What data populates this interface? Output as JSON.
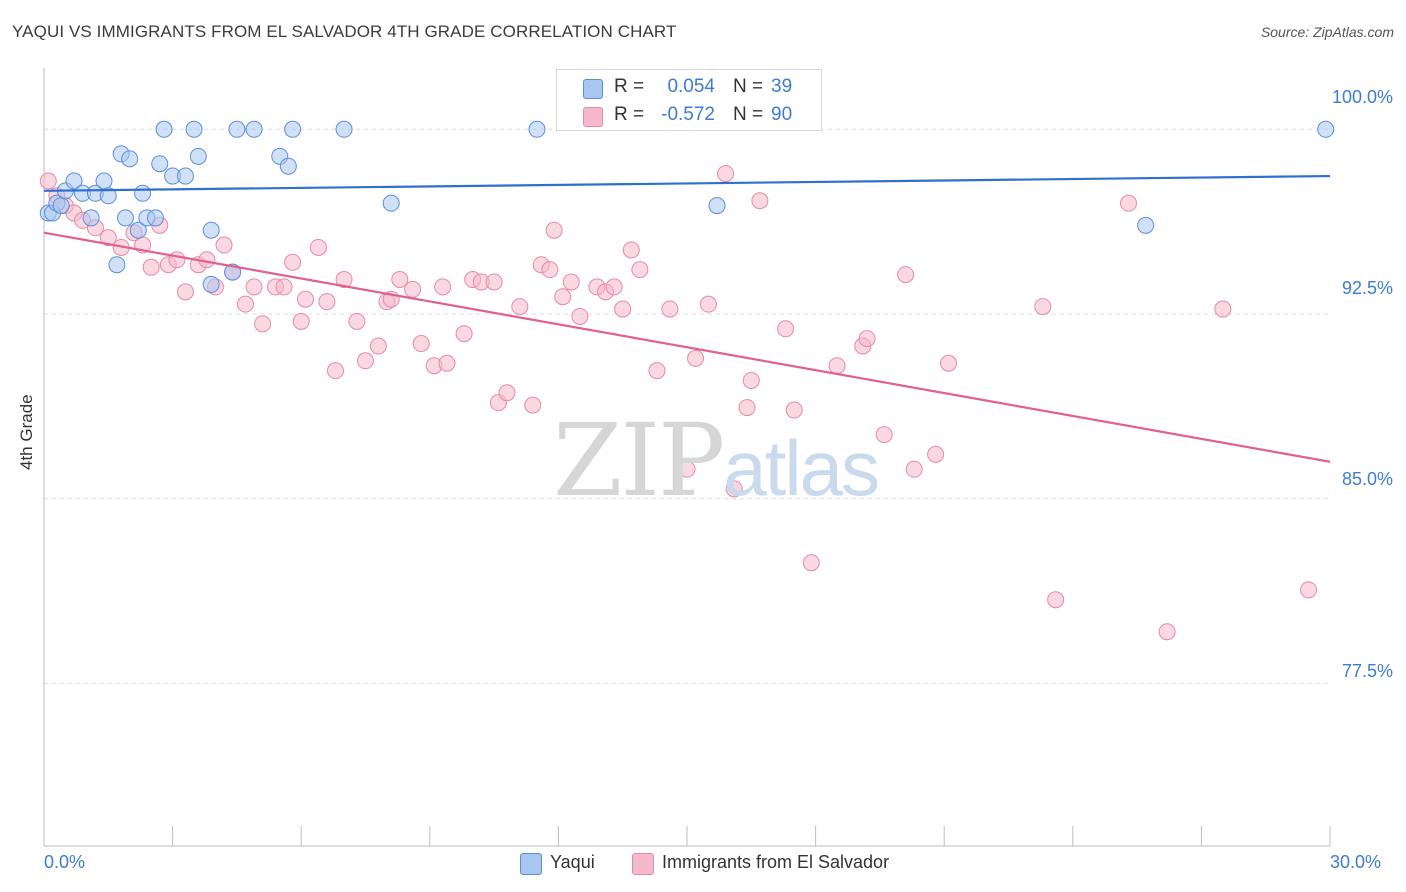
{
  "header": {
    "title": "YAQUI VS IMMIGRANTS FROM EL SALVADOR 4TH GRADE CORRELATION CHART",
    "source": "Source: ZipAtlas.com"
  },
  "watermark": {
    "zip": "ZIP",
    "atlas": "atlas"
  },
  "legend": {
    "r_label": "R =",
    "n_label": "N =",
    "rows": [
      {
        "r": "0.054",
        "n": "39",
        "color": "#a9c6f0"
      },
      {
        "r": "-0.572",
        "n": "90",
        "color": "#f6b8cb"
      }
    ]
  },
  "bottom_legend": [
    {
      "label": "Yaqui",
      "color": "#a9c6f0"
    },
    {
      "label": "Immigrants from El Salvador",
      "color": "#f6b8cb"
    }
  ],
  "axes": {
    "ylabel": "4th Grade",
    "yticks": [
      "100.0%",
      "92.5%",
      "85.0%",
      "77.5%"
    ],
    "xticks": [
      "0.0%",
      "30.0%"
    ]
  },
  "colors": {
    "blue_fill": "#a9c6f0",
    "blue_stroke": "#5b8fd8",
    "blue_line": "#2f6fd0",
    "pink_fill": "#f6b8cb",
    "pink_stroke": "#e58aa6",
    "pink_line": "#e0608e",
    "tick_text": "#3d7bd4",
    "grid": "#dcdcdc"
  },
  "chart_data": {
    "type": "scatter",
    "title": "YAQUI VS IMMIGRANTS FROM EL SALVADOR 4TH GRADE CORRELATION CHART",
    "xlabel": "",
    "ylabel": "4th Grade",
    "xlim": [
      0,
      30
    ],
    "ylim": [
      70.9,
      102.0
    ],
    "ygrid": [
      100.0,
      92.5,
      85.0,
      77.5
    ],
    "grid": true,
    "legend_position": "top-center",
    "series": [
      {
        "name": "Yaqui",
        "r": 0.054,
        "n": 39,
        "trend": [
          [
            0,
            97.5
          ],
          [
            30,
            98.1
          ]
        ],
        "points": [
          [
            0.1,
            96.6
          ],
          [
            0.2,
            96.6
          ],
          [
            0.3,
            97.0
          ],
          [
            0.4,
            96.9
          ],
          [
            0.5,
            97.5
          ],
          [
            0.7,
            97.9
          ],
          [
            0.9,
            97.4
          ],
          [
            1.1,
            96.4
          ],
          [
            1.2,
            97.4
          ],
          [
            1.4,
            97.9
          ],
          [
            1.5,
            97.3
          ],
          [
            1.7,
            94.5
          ],
          [
            1.8,
            99.0
          ],
          [
            2.0,
            98.8
          ],
          [
            1.9,
            96.4
          ],
          [
            2.2,
            95.9
          ],
          [
            2.3,
            97.4
          ],
          [
            2.4,
            96.4
          ],
          [
            2.6,
            96.4
          ],
          [
            2.7,
            98.6
          ],
          [
            2.8,
            100.0
          ],
          [
            3.0,
            98.1
          ],
          [
            3.3,
            98.1
          ],
          [
            3.5,
            100.0
          ],
          [
            3.6,
            98.9
          ],
          [
            3.9,
            95.9
          ],
          [
            3.9,
            93.7
          ],
          [
            4.4,
            94.2
          ],
          [
            4.5,
            100.0
          ],
          [
            4.9,
            100.0
          ],
          [
            5.5,
            98.9
          ],
          [
            5.7,
            98.5
          ],
          [
            5.8,
            100.0
          ],
          [
            7.0,
            100.0
          ],
          [
            8.1,
            97.0
          ],
          [
            11.5,
            100.0
          ],
          [
            15.7,
            96.9
          ],
          [
            25.7,
            96.1
          ],
          [
            29.9,
            100.0
          ]
        ]
      },
      {
        "name": "Immigrants from El Salvador",
        "r": -0.572,
        "n": 90,
        "trend": [
          [
            0,
            95.8
          ],
          [
            30,
            86.5
          ]
        ],
        "points": [
          [
            0.1,
            97.9
          ],
          [
            0.3,
            97.3
          ],
          [
            0.5,
            96.9
          ],
          [
            0.7,
            96.6
          ],
          [
            0.9,
            96.3
          ],
          [
            1.2,
            96.0
          ],
          [
            1.5,
            95.6
          ],
          [
            1.8,
            95.2
          ],
          [
            2.1,
            95.8
          ],
          [
            2.3,
            95.3
          ],
          [
            2.5,
            94.4
          ],
          [
            2.7,
            96.1
          ],
          [
            2.9,
            94.5
          ],
          [
            3.1,
            94.7
          ],
          [
            3.3,
            93.4
          ],
          [
            3.6,
            94.5
          ],
          [
            3.8,
            94.7
          ],
          [
            4.0,
            93.6
          ],
          [
            4.2,
            95.3
          ],
          [
            4.4,
            94.2
          ],
          [
            4.7,
            92.9
          ],
          [
            4.9,
            93.6
          ],
          [
            5.1,
            92.1
          ],
          [
            5.4,
            93.6
          ],
          [
            5.6,
            93.6
          ],
          [
            5.8,
            94.6
          ],
          [
            6.0,
            92.2
          ],
          [
            6.1,
            93.1
          ],
          [
            6.4,
            95.2
          ],
          [
            6.6,
            93.0
          ],
          [
            6.8,
            90.2
          ],
          [
            7.0,
            93.9
          ],
          [
            7.3,
            92.2
          ],
          [
            7.5,
            90.6
          ],
          [
            7.8,
            91.2
          ],
          [
            8.0,
            93.0
          ],
          [
            8.1,
            93.1
          ],
          [
            8.3,
            93.9
          ],
          [
            8.6,
            93.5
          ],
          [
            8.8,
            91.3
          ],
          [
            9.1,
            90.4
          ],
          [
            9.3,
            93.6
          ],
          [
            9.4,
            90.5
          ],
          [
            9.8,
            91.7
          ],
          [
            10.0,
            93.9
          ],
          [
            10.2,
            93.8
          ],
          [
            10.5,
            93.8
          ],
          [
            10.6,
            88.9
          ],
          [
            10.8,
            89.3
          ],
          [
            11.1,
            92.8
          ],
          [
            11.4,
            88.8
          ],
          [
            11.6,
            94.5
          ],
          [
            11.8,
            94.3
          ],
          [
            11.9,
            95.9
          ],
          [
            12.1,
            93.2
          ],
          [
            12.3,
            93.8
          ],
          [
            12.5,
            92.4
          ],
          [
            12.9,
            93.6
          ],
          [
            13.1,
            93.4
          ],
          [
            13.3,
            93.6
          ],
          [
            13.5,
            92.7
          ],
          [
            13.7,
            95.1
          ],
          [
            13.9,
            94.3
          ],
          [
            14.3,
            90.2
          ],
          [
            14.6,
            92.7
          ],
          [
            15.0,
            86.2
          ],
          [
            15.2,
            90.7
          ],
          [
            15.5,
            92.9
          ],
          [
            15.9,
            98.2
          ],
          [
            16.1,
            85.4
          ],
          [
            16.4,
            88.7
          ],
          [
            16.5,
            89.8
          ],
          [
            16.7,
            97.1
          ],
          [
            17.3,
            91.9
          ],
          [
            17.5,
            88.6
          ],
          [
            17.9,
            82.4
          ],
          [
            18.5,
            90.4
          ],
          [
            19.1,
            91.2
          ],
          [
            19.2,
            91.5
          ],
          [
            19.6,
            87.6
          ],
          [
            20.1,
            94.1
          ],
          [
            20.3,
            86.2
          ],
          [
            20.8,
            86.8
          ],
          [
            21.1,
            90.5
          ],
          [
            23.3,
            92.8
          ],
          [
            23.6,
            80.9
          ],
          [
            25.3,
            97.0
          ],
          [
            26.2,
            79.6
          ],
          [
            27.5,
            92.7
          ],
          [
            29.5,
            81.3
          ]
        ]
      }
    ]
  }
}
